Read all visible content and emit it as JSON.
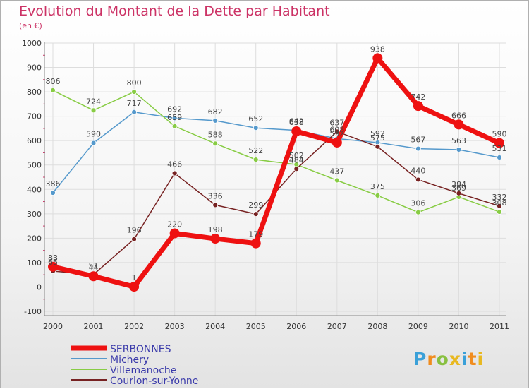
{
  "title": "Evolution du Montant de la Dette par Habitant",
  "subtitle": "(en €)",
  "logo": {
    "text": "Proxiti",
    "colors": [
      "#3aa0d8",
      "#f08c1e",
      "#88c040",
      "#e8b820",
      "#3aa0d8",
      "#f08c1e",
      "#e8b820"
    ]
  },
  "chart_data": {
    "type": "line",
    "x": [
      "2000",
      "2001",
      "2002",
      "2003",
      "2004",
      "2005",
      "2006",
      "2007",
      "2008",
      "2009",
      "2010",
      "2011"
    ],
    "ylim": [
      -100,
      1000
    ],
    "yticks": [
      "-100",
      "0",
      "100",
      "200",
      "300",
      "400",
      "500",
      "600",
      "700",
      "800",
      "900",
      "1000"
    ],
    "grid": true,
    "legend": "bottom-left",
    "series": [
      {
        "name": "SERBONNES",
        "color": "#ee1111",
        "width": 7,
        "r": 7,
        "values": [
          83,
          44,
          1,
          220,
          198,
          179,
          638,
          592,
          938,
          742,
          666,
          590
        ]
      },
      {
        "name": "Michery",
        "color": "#5599cc",
        "width": 1.5,
        "r": 3.5,
        "values": [
          386,
          590,
          717,
          692,
          682,
          652,
          642,
          608,
          592,
          567,
          563,
          531
        ]
      },
      {
        "name": "Villemanoche",
        "color": "#88cc44",
        "width": 1.5,
        "r": 3.5,
        "values": [
          806,
          724,
          800,
          659,
          588,
          522,
          502,
          437,
          375,
          306,
          369,
          308
        ]
      },
      {
        "name": "Courlon-sur-Yonne",
        "color": "#772222",
        "width": 1.5,
        "r": 3.5,
        "values": [
          65,
          51,
          196,
          466,
          336,
          299,
          484,
          637,
          575,
          440,
          384,
          332
        ]
      }
    ],
    "data_labels": [
      [
        "83",
        "44",
        "1",
        "220",
        "198",
        "179",
        "638",
        "592",
        "938",
        "742",
        "666",
        "590"
      ],
      [
        "386",
        "590",
        "717",
        "692",
        "682",
        "652",
        "642",
        "608",
        "592",
        "567",
        "563",
        "531"
      ],
      [
        "806",
        "724",
        "800",
        "659",
        "588",
        "522",
        "502",
        "437",
        "375",
        "306",
        "369",
        "308"
      ],
      [
        "65",
        "51",
        "196",
        "466",
        "336",
        "299",
        "484",
        "637",
        "575",
        "440",
        "384",
        "332"
      ]
    ]
  }
}
